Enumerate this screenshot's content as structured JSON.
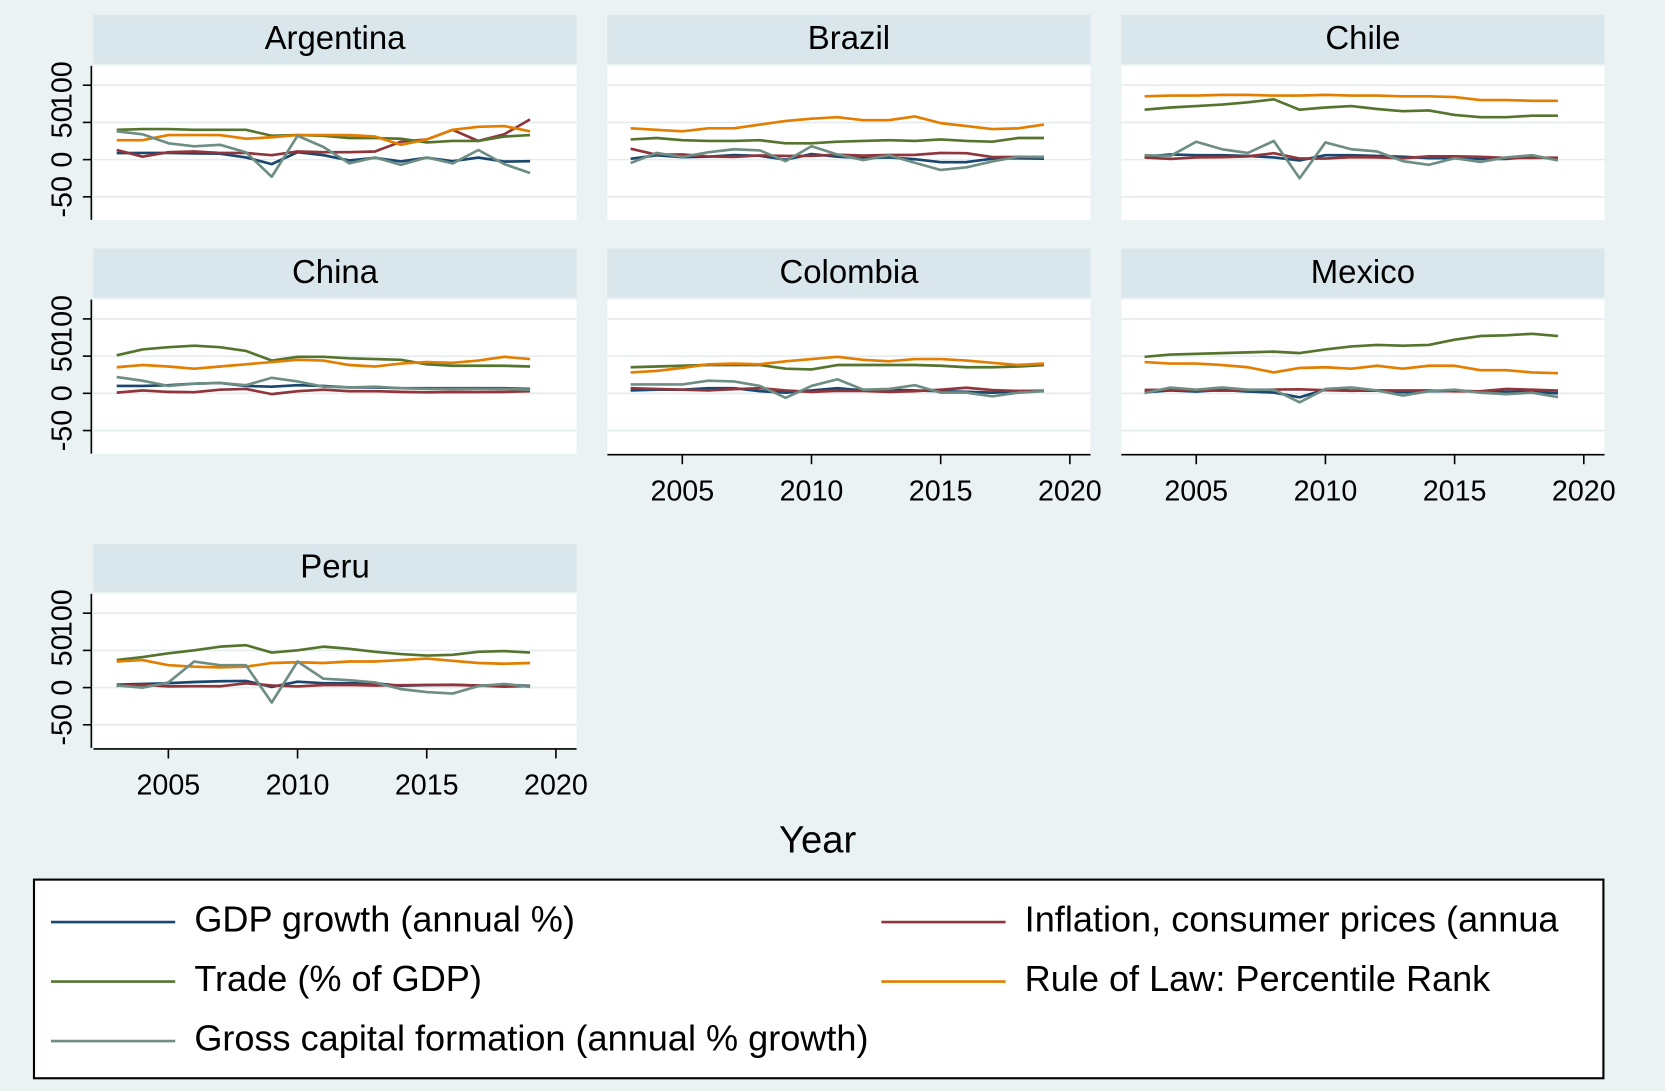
{
  "chart_data": {
    "type": "line",
    "x_label": "Year",
    "grid": true,
    "x": [
      2003,
      2004,
      2005,
      2006,
      2007,
      2008,
      2009,
      2010,
      2011,
      2012,
      2013,
      2014,
      2015,
      2016,
      2017,
      2018,
      2019
    ],
    "xlim": [
      2002.1,
      2020.8
    ],
    "xticks": [
      2005,
      2010,
      2015,
      2020
    ],
    "ylim": [
      -81,
      126
    ],
    "yticks": [
      -50,
      0,
      50,
      100
    ],
    "series": [
      {
        "name": "GDP growth (annual %)",
        "color": "#1a476f"
      },
      {
        "name": "Inflation, consumer prices (annua",
        "color": "#90353b"
      },
      {
        "name": "Trade (% of GDP)",
        "color": "#55752f"
      },
      {
        "name": "Rule of Law: Percentile Rank",
        "color": "#e37e00"
      },
      {
        "name": "Gross capital formation (annual % growth)",
        "color": "#6e8e84"
      }
    ],
    "panels": [
      {
        "title": "Argentina",
        "values": [
          [
            8.8,
            9,
            9,
            8.4,
            8,
            3,
            -6,
            10,
            6,
            -1,
            2.4,
            -2.5,
            2.7,
            -2,
            2.8,
            -2.6,
            -2
          ],
          [
            13,
            4,
            10,
            11,
            9,
            9,
            6,
            11,
            10,
            10,
            11,
            24,
            27,
            40,
            25,
            34,
            54
          ],
          [
            40,
            41,
            41,
            40,
            40,
            40,
            32,
            33,
            32,
            29,
            29,
            28,
            23,
            25,
            25,
            31,
            33
          ],
          [
            26,
            26,
            33,
            33,
            33,
            28,
            30,
            33,
            33,
            33,
            31,
            20,
            27,
            40,
            44,
            45,
            38
          ],
          [
            38,
            34,
            22,
            18,
            20,
            10,
            -23,
            32,
            17,
            -5,
            3,
            -7,
            3,
            -5,
            13,
            -6,
            -18
          ]
        ]
      },
      {
        "title": "Brazil",
        "values": [
          [
            1.1,
            5.8,
            3.2,
            4,
            6.1,
            5.1,
            -0.1,
            7.5,
            4,
            1.9,
            3,
            0.5,
            -3.5,
            -3.3,
            1.3,
            1.8,
            1.2
          ],
          [
            14.7,
            6.6,
            6.9,
            4.2,
            3.6,
            5.7,
            4.9,
            5,
            6.6,
            5.4,
            6.2,
            6.3,
            9,
            8.7,
            3.4,
            3.7,
            3.7
          ],
          [
            27,
            29,
            26,
            25,
            25,
            26,
            22,
            22,
            24,
            25,
            26,
            25,
            27,
            25,
            24,
            29,
            29
          ],
          [
            42,
            40,
            38,
            42,
            42,
            47,
            52,
            55,
            57,
            53,
            53,
            58,
            49,
            45,
            41,
            42,
            47
          ],
          [
            -4.6,
            9,
            3.6,
            9.8,
            13.9,
            12.3,
            -2.1,
            18,
            7,
            -0.6,
            5.8,
            -4.2,
            -13.9,
            -10.3,
            -2.5,
            3.9,
            3.4
          ]
        ]
      },
      {
        "title": "Chile",
        "values": [
          [
            4,
            7,
            6,
            6,
            5,
            3,
            -1,
            6,
            6,
            5,
            4,
            2,
            2,
            1,
            1,
            4,
            1
          ],
          [
            2.8,
            1,
            3,
            3.4,
            4.4,
            8.7,
            1.5,
            1.4,
            3.3,
            3,
            1.8,
            4.4,
            4.3,
            3.8,
            2.2,
            2.4,
            2.6
          ],
          [
            67,
            70,
            72,
            74,
            77,
            81,
            67,
            70,
            72,
            68,
            65,
            66,
            60,
            57,
            57,
            59,
            59
          ],
          [
            85,
            86,
            86,
            87,
            87,
            86,
            86,
            87,
            86,
            86,
            85,
            85,
            84,
            80,
            80,
            79,
            79
          ],
          [
            6,
            5,
            24,
            14,
            9,
            25,
            -25,
            23,
            14,
            11,
            -2,
            -7,
            2,
            -3,
            3,
            6,
            -1
          ]
        ]
      },
      {
        "title": "China",
        "values": [
          [
            10,
            10,
            11,
            13,
            14,
            10,
            9,
            11,
            10,
            8,
            8,
            7,
            7,
            7,
            7,
            7,
            6
          ],
          [
            1,
            4,
            2,
            1.5,
            5,
            6,
            -1,
            3,
            5,
            3,
            3,
            2,
            1.4,
            2,
            1.6,
            2,
            2.9
          ],
          [
            51,
            59,
            62,
            64,
            62,
            57,
            44,
            49,
            49,
            47,
            46,
            45,
            39,
            37,
            37,
            37,
            36
          ],
          [
            35,
            38,
            36,
            33,
            36,
            39,
            42,
            45,
            44,
            38,
            36,
            40,
            42,
            41,
            44,
            49,
            46
          ],
          [
            22,
            17,
            10,
            13,
            14,
            11,
            21,
            16,
            9,
            8,
            9,
            7,
            6,
            6,
            6,
            6,
            5
          ]
        ]
      },
      {
        "title": "Colombia",
        "values": [
          [
            4,
            5,
            5,
            7,
            7,
            3,
            1,
            4,
            7,
            4,
            5,
            4,
            3,
            2,
            1,
            2.5,
            3.3
          ],
          [
            7,
            6,
            5,
            4,
            5.5,
            7,
            4,
            2,
            3.4,
            3.2,
            2,
            2.9,
            5,
            7.5,
            4.3,
            3.2,
            3.5
          ],
          [
            35,
            36,
            37,
            38,
            38,
            38,
            33,
            32,
            38,
            38,
            38,
            38,
            37,
            35,
            35,
            36,
            38
          ],
          [
            28,
            30,
            34,
            39,
            40,
            39,
            43,
            46,
            49,
            45,
            43,
            46,
            46,
            44,
            41,
            38,
            40
          ],
          [
            12,
            12,
            12,
            17,
            16,
            10,
            -6,
            10,
            19,
            5,
            6,
            11,
            1,
            1,
            -4,
            1,
            3
          ]
        ]
      },
      {
        "title": "Mexico",
        "values": [
          [
            1.4,
            3.9,
            2.3,
            4.5,
            2.3,
            1.1,
            -5.3,
            5.1,
            3.7,
            3.6,
            1.4,
            2.8,
            3.3,
            2.6,
            2.1,
            2.2,
            -0.2
          ],
          [
            4.5,
            4.7,
            4,
            3.6,
            4,
            5.1,
            5.3,
            4.2,
            3.4,
            4.1,
            3.8,
            4,
            2.7,
            2.8,
            6,
            4.9,
            3.6
          ],
          [
            49,
            52,
            53,
            54,
            55,
            56,
            54,
            59,
            63,
            65,
            64,
            65,
            72,
            77,
            78,
            80,
            77
          ],
          [
            42,
            40,
            40,
            38,
            35,
            28,
            34,
            35,
            33,
            37,
            33,
            37,
            37,
            31,
            31,
            28,
            27
          ],
          [
            0.4,
            7.8,
            5,
            8,
            5,
            5,
            -12,
            6,
            8,
            4,
            -3,
            3,
            5,
            1,
            -1,
            1,
            -5
          ]
        ]
      },
      {
        "title": "Peru",
        "values": [
          [
            4,
            5,
            6,
            7.5,
            8.5,
            9,
            1,
            8,
            6,
            6,
            6,
            2.4,
            3.3,
            4,
            2.5,
            4,
            2.2
          ],
          [
            2.3,
            3.7,
            1.6,
            2,
            1.8,
            5.8,
            2.9,
            1.5,
            3.4,
            3.7,
            2.8,
            3.2,
            3.5,
            3.6,
            2.8,
            1.3,
            2.1
          ],
          [
            37,
            41,
            46,
            50,
            55,
            57,
            47,
            50,
            55,
            52,
            48,
            45,
            43,
            44,
            48,
            49,
            47
          ],
          [
            35,
            37,
            30,
            28,
            27,
            28,
            33,
            34,
            33,
            35,
            35,
            37,
            39,
            36,
            33,
            32,
            33
          ],
          [
            3,
            0,
            7,
            35,
            30,
            30,
            -20,
            35,
            12,
            10,
            7,
            -2,
            -6,
            -8,
            2,
            5,
            1
          ]
        ]
      }
    ]
  }
}
